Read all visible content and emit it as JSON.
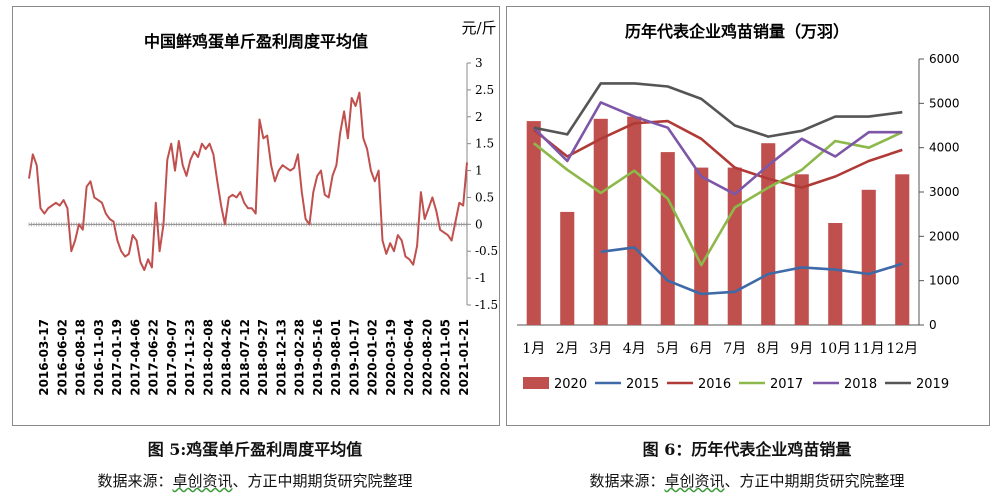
{
  "left_panel": {
    "caption": "图 5:鸡蛋单斤盈利周度平均值",
    "source_prefix": "数据来源：",
    "source_main": "卓创资讯",
    "source_suffix": "、方正中期期货研究院整理"
  },
  "right_panel": {
    "caption": "图 6：历年代表企业鸡苗销量",
    "source_prefix": "数据来源：",
    "source_main": "卓创资讯",
    "source_suffix": "、方正中期期货研究院整理"
  },
  "colors": {
    "profit_line": "#c0504d",
    "bar_2020": "#c0504d",
    "s2015": "#3e6aa8",
    "s2016": "#b03a36",
    "s2017": "#8db84a",
    "s2018": "#7d56a8",
    "s2019": "#555555"
  },
  "chart_data": [
    {
      "type": "line",
      "title": "中国鲜鸡蛋单斤盈利周度平均值",
      "unit_label": "元/斤",
      "ylim": [
        -1.5,
        3
      ],
      "yticks": [
        "3",
        "2.5",
        "2",
        "1.5",
        "1",
        "0.5",
        "0",
        "-0.5",
        "-1",
        "-1.5"
      ],
      "xtick_labels": [
        "2016-03-17",
        "2016-06-02",
        "2016-08-18",
        "2016-11-03",
        "2017-01-19",
        "2017-04-06",
        "2017-06-22",
        "2017-09-07",
        "2017-11-23",
        "2018-02-08",
        "2018-04-26",
        "2018-07-12",
        "2018-09-27",
        "2018-12-13",
        "2019-02-28",
        "2019-05-16",
        "2019-08-01",
        "2019-10-17",
        "2020-01-02",
        "2020-03-19",
        "2020-06-04",
        "2020-08-20",
        "2020-11-05",
        "2021-01-21"
      ],
      "series": [
        {
          "values": [
            0.85,
            1.3,
            1.1,
            0.3,
            0.2,
            0.3,
            0.35,
            0.4,
            0.35,
            0.45,
            0.3,
            -0.5,
            -0.3,
            0.0,
            -0.1,
            0.7,
            0.8,
            0.5,
            0.45,
            0.4,
            0.2,
            0.1,
            0.05,
            -0.3,
            -0.5,
            -0.6,
            -0.55,
            -0.2,
            -0.3,
            -0.7,
            -0.85,
            -0.65,
            -0.8,
            0.4,
            -0.5,
            0.0,
            1.2,
            1.5,
            1.0,
            1.55,
            1.1,
            0.9,
            1.2,
            1.35,
            1.25,
            1.5,
            1.4,
            1.5,
            1.3,
            0.8,
            0.35,
            0.0,
            0.5,
            0.55,
            0.5,
            0.6,
            0.4,
            0.3,
            0.3,
            0.2,
            1.95,
            1.6,
            1.65,
            1.1,
            0.8,
            1.0,
            1.1,
            1.05,
            1.0,
            1.05,
            1.3,
            0.6,
            0.1,
            0.0,
            0.6,
            0.9,
            1.0,
            0.55,
            0.5,
            0.9,
            1.1,
            1.7,
            2.1,
            1.6,
            2.35,
            2.2,
            2.45,
            1.6,
            1.4,
            1.0,
            0.8,
            1.0,
            -0.3,
            -0.55,
            -0.35,
            -0.5,
            -0.2,
            -0.3,
            -0.6,
            -0.65,
            -0.75,
            -0.4,
            0.6,
            0.1,
            0.3,
            0.5,
            0.25,
            -0.1,
            -0.15,
            -0.2,
            -0.3,
            0.05,
            0.4,
            0.35,
            1.15
          ]
        }
      ]
    },
    {
      "type": "bar+line",
      "title": "历年代表企业鸡苗销量（万羽）",
      "ylim": [
        0,
        6000
      ],
      "yticks": [
        "6000",
        "5000",
        "4000",
        "3000",
        "2000",
        "1000",
        "0"
      ],
      "categories": [
        "1月",
        "2月",
        "3月",
        "4月",
        "5月",
        "6月",
        "7月",
        "8月",
        "9月",
        "10月",
        "11月",
        "12月"
      ],
      "bars": {
        "name": "2020",
        "values": [
          4600,
          2550,
          4650,
          4700,
          3900,
          3550,
          3550,
          4100,
          3400,
          2300,
          3050,
          3400
        ]
      },
      "series": [
        {
          "name": "2015",
          "values": [
            null,
            null,
            1650,
            1750,
            1000,
            700,
            750,
            1150,
            1300,
            1250,
            1150,
            1380
          ]
        },
        {
          "name": "2016",
          "values": [
            4400,
            3800,
            4200,
            4550,
            4600,
            4200,
            3550,
            3300,
            3100,
            3350,
            3700,
            3950
          ]
        },
        {
          "name": "2017",
          "values": [
            4100,
            3500,
            2980,
            3480,
            2850,
            1350,
            2650,
            3100,
            3500,
            4150,
            4000,
            4350
          ]
        },
        {
          "name": "2018",
          "values": [
            4450,
            3700,
            5020,
            4700,
            4450,
            3350,
            2950,
            3600,
            4200,
            3800,
            4350,
            4350
          ]
        },
        {
          "name": "2019",
          "values": [
            4450,
            4300,
            5450,
            5450,
            5380,
            5100,
            4500,
            4250,
            4380,
            4700,
            4700,
            4800
          ]
        }
      ],
      "legend_order": [
        "2020",
        "2015",
        "2016",
        "2017",
        "2018",
        "2019"
      ],
      "legend_position": "bottom"
    }
  ]
}
